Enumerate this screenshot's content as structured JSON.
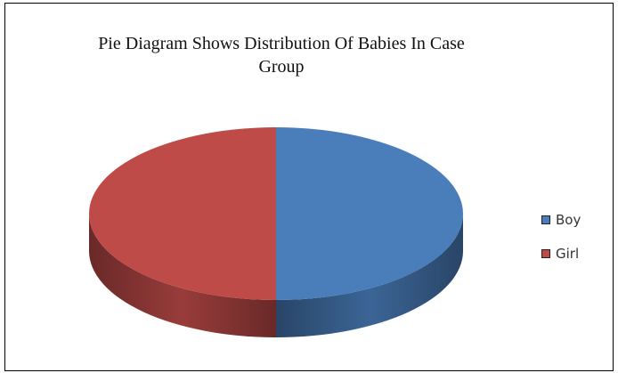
{
  "chart_data": {
    "type": "pie",
    "title_lines": [
      "Pie Diagram Shows Distribution Of Babies In Case",
      "Group"
    ],
    "slices": [
      {
        "label": "Boy",
        "value": 50,
        "color": "#4a7ebb"
      },
      {
        "label": "Girl",
        "value": 50,
        "color": "#be4b48"
      }
    ],
    "style": "3d",
    "legend_position": "right"
  }
}
